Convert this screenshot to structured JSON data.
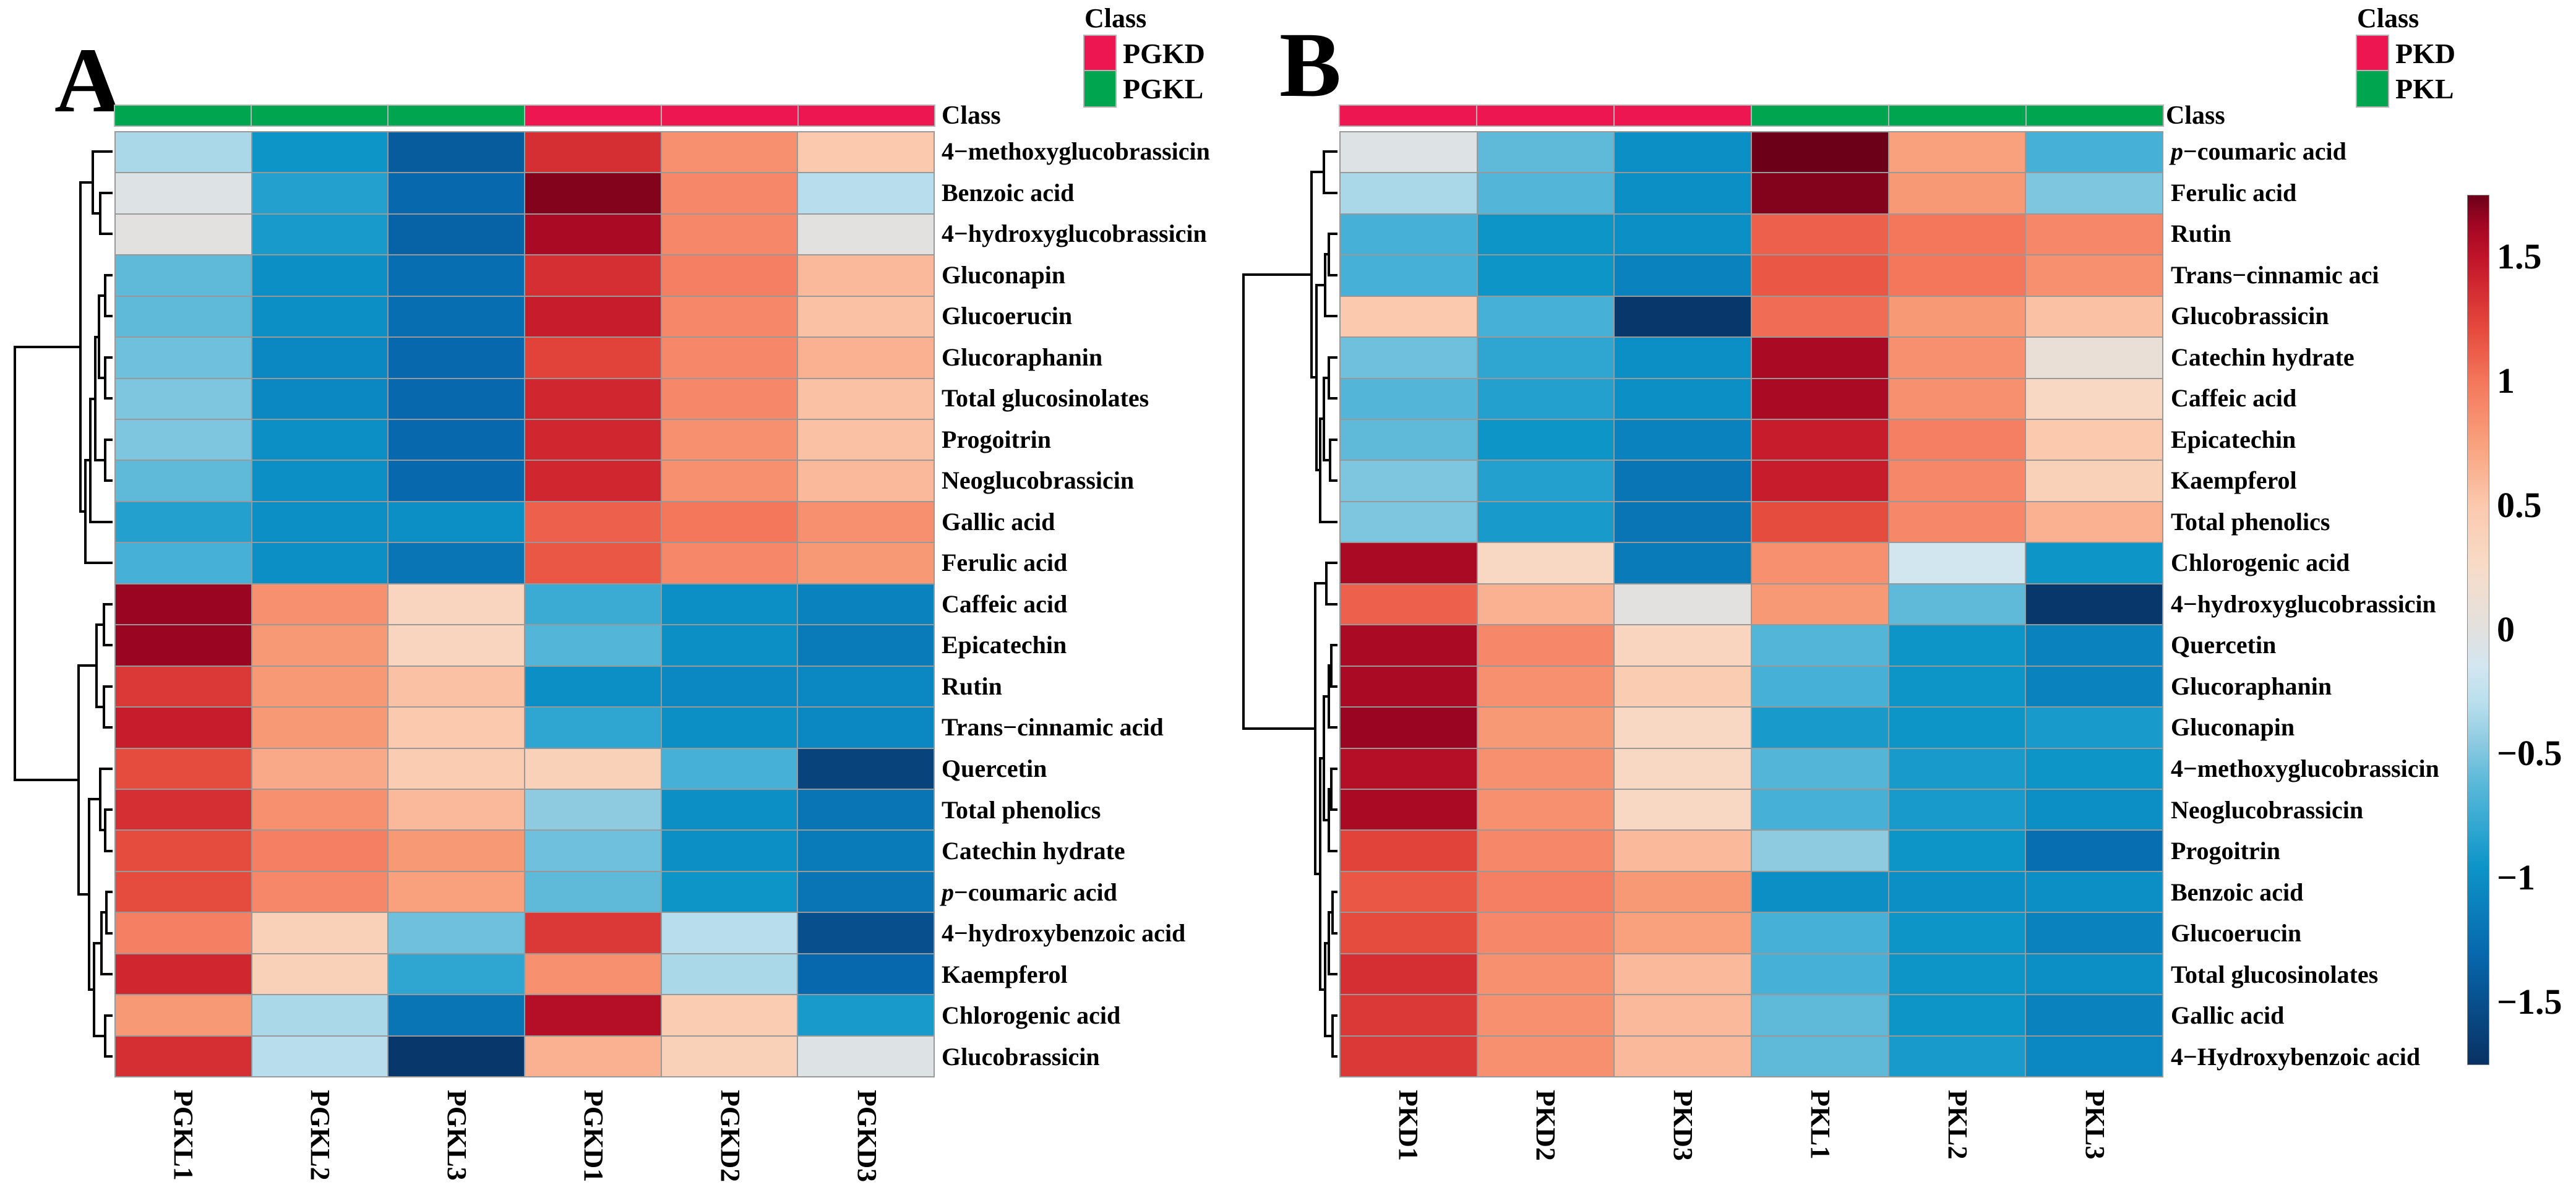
{
  "chart_data": [
    {
      "type": "heatmap",
      "panel": "A",
      "legend": {
        "title": "Class",
        "items": [
          {
            "label": "PGKD",
            "color": "#ED1650"
          },
          {
            "label": "PGKL",
            "color": "#00A64F"
          }
        ]
      },
      "class_bar_label": "Class",
      "columns": [
        "PGKL1",
        "PGKL2",
        "PGKL3",
        "PGKD1",
        "PGKD2",
        "PGKD3"
      ],
      "column_classes": [
        "PGKL",
        "PGKL",
        "PGKL",
        "PGKD",
        "PGKD",
        "PGKD"
      ],
      "rows": [
        "4−methoxyglucobrassicin",
        "Benzoic acid",
        "4−hydroxyglucobrassicin",
        "Gluconapin",
        "Glucoerucin",
        "Glucoraphanin",
        "Total glucosinolates",
        "Progoitrin",
        "Neoglucobrassicin",
        "Gallic acid",
        "Ferulic acid",
        "Caffeic acid",
        "Epicatechin",
        "Rutin",
        "Trans−cinnamic acid",
        "Quercetin",
        "Total phenolics",
        "Catechin hydrate",
        "p−coumaric acid",
        "4−hydroxybenzoic acid",
        "Kaempferol",
        "Chlorogenic acid",
        "Glucobrassicin"
      ],
      "values": [
        [
          -0.35,
          -0.95,
          -1.4,
          1.35,
          0.85,
          0.5
        ],
        [
          -0.05,
          -0.85,
          -1.3,
          1.7,
          0.9,
          -0.3
        ],
        [
          0.0,
          -0.9,
          -1.35,
          1.6,
          0.9,
          0.0
        ],
        [
          -0.6,
          -1.0,
          -1.25,
          1.35,
          0.95,
          0.6
        ],
        [
          -0.6,
          -1.0,
          -1.25,
          1.45,
          0.9,
          0.55
        ],
        [
          -0.55,
          -1.05,
          -1.3,
          1.25,
          0.9,
          0.65
        ],
        [
          -0.5,
          -1.05,
          -1.3,
          1.4,
          0.9,
          0.55
        ],
        [
          -0.5,
          -1.0,
          -1.3,
          1.4,
          0.85,
          0.55
        ],
        [
          -0.6,
          -1.0,
          -1.3,
          1.4,
          0.85,
          0.6
        ],
        [
          -0.85,
          -1.0,
          -1.0,
          1.1,
          1.0,
          0.85
        ],
        [
          -0.7,
          -1.0,
          -1.2,
          1.15,
          0.9,
          0.8
        ],
        [
          1.65,
          0.85,
          0.35,
          -0.75,
          -1.0,
          -1.1
        ],
        [
          1.65,
          0.8,
          0.35,
          -0.65,
          -1.0,
          -1.15
        ],
        [
          1.3,
          0.8,
          0.55,
          -1.0,
          -1.05,
          -1.05
        ],
        [
          1.45,
          0.8,
          0.5,
          -0.8,
          -1.0,
          -1.05
        ],
        [
          1.2,
          0.7,
          0.45,
          0.4,
          -0.7,
          -1.6
        ],
        [
          1.35,
          0.85,
          0.6,
          -0.45,
          -1.0,
          -1.2
        ],
        [
          1.2,
          0.95,
          0.8,
          -0.55,
          -1.0,
          -1.15
        ],
        [
          1.2,
          0.9,
          0.75,
          -0.6,
          -0.95,
          -1.2
        ],
        [
          0.95,
          0.4,
          -0.55,
          1.3,
          -0.3,
          -1.5
        ],
        [
          1.4,
          0.4,
          -0.8,
          0.85,
          -0.35,
          -1.3
        ],
        [
          0.8,
          -0.35,
          -1.2,
          1.55,
          0.45,
          -0.9
        ],
        [
          1.35,
          -0.3,
          -1.7,
          0.65,
          0.4,
          -0.05
        ]
      ],
      "value_domain": [
        -1.75,
        1.75
      ]
    },
    {
      "type": "heatmap",
      "panel": "B",
      "legend": {
        "title": "Class",
        "items": [
          {
            "label": "PKD",
            "color": "#ED1650"
          },
          {
            "label": "PKL",
            "color": "#00A64F"
          }
        ]
      },
      "class_bar_label": "Class",
      "columns": [
        "PKD1",
        "PKD2",
        "PKD3",
        "PKL1",
        "PKL2",
        "PKL3"
      ],
      "column_classes": [
        "PKD",
        "PKD",
        "PKD",
        "PKL",
        "PKL",
        "PKL"
      ],
      "rows": [
        "p−coumaric acid",
        "Ferulic acid",
        "Rutin",
        "Trans−cinnamic aci",
        "Glucobrassicin",
        "Catechin hydrate",
        "Caffeic acid",
        "Epicatechin",
        "Kaempferol",
        "Total phenolics",
        "Chlorogenic acid",
        "4−hydroxyglucobrassicin",
        "Quercetin",
        "Glucoraphanin",
        "Gluconapin",
        "4−methoxyglucobrassicin",
        "Neoglucobrassicin",
        "Progoitrin",
        "Benzoic acid",
        "Glucoerucin",
        "Total glucosinolates",
        "Gallic acid",
        "4−Hydroxybenzoic acid"
      ],
      "values": [
        [
          -0.05,
          -0.6,
          -1.0,
          1.75,
          0.75,
          -0.7
        ],
        [
          -0.35,
          -0.65,
          -1.0,
          1.7,
          0.8,
          -0.5
        ],
        [
          -0.7,
          -0.95,
          -1.0,
          1.1,
          1.0,
          0.9
        ],
        [
          -0.7,
          -0.95,
          -1.1,
          1.15,
          1.0,
          0.85
        ],
        [
          0.5,
          -0.7,
          -1.7,
          1.05,
          0.8,
          0.55
        ],
        [
          -0.55,
          -0.8,
          -1.0,
          1.6,
          0.85,
          0.1
        ],
        [
          -0.65,
          -0.85,
          -1.0,
          1.6,
          0.85,
          0.3
        ],
        [
          -0.6,
          -0.95,
          -1.1,
          1.45,
          0.95,
          0.5
        ],
        [
          -0.5,
          -0.85,
          -1.2,
          1.45,
          0.9,
          0.4
        ],
        [
          -0.5,
          -0.9,
          -1.2,
          1.2,
          0.9,
          0.65
        ],
        [
          1.6,
          0.3,
          -1.15,
          0.85,
          -0.15,
          -0.95
        ],
        [
          1.1,
          0.65,
          0.0,
          0.8,
          -0.6,
          -1.7
        ],
        [
          1.6,
          0.9,
          0.35,
          -0.65,
          -0.95,
          -1.1
        ],
        [
          1.6,
          0.85,
          0.45,
          -0.7,
          -0.95,
          -1.1
        ],
        [
          1.65,
          0.8,
          0.3,
          -0.9,
          -0.95,
          -0.9
        ],
        [
          1.55,
          0.85,
          0.3,
          -0.65,
          -0.9,
          -0.95
        ],
        [
          1.6,
          0.85,
          0.3,
          -0.7,
          -0.9,
          -1.0
        ],
        [
          1.25,
          0.9,
          0.6,
          -0.45,
          -0.95,
          -1.25
        ],
        [
          1.15,
          0.95,
          0.8,
          -1.0,
          -1.0,
          -1.0
        ],
        [
          1.2,
          0.9,
          0.75,
          -0.7,
          -0.95,
          -1.1
        ],
        [
          1.35,
          0.85,
          0.6,
          -0.7,
          -0.95,
          -1.0
        ],
        [
          1.3,
          0.85,
          0.6,
          -0.6,
          -0.95,
          -1.1
        ],
        [
          1.3,
          0.85,
          0.6,
          -0.6,
          -0.9,
          -1.05
        ]
      ],
      "value_domain": [
        -1.75,
        1.75
      ]
    }
  ],
  "colorbar": {
    "domain": [
      -1.75,
      1.75
    ],
    "ticks": [
      {
        "label": "1.5",
        "value": 1.5
      },
      {
        "label": "1",
        "value": 1.0
      },
      {
        "label": "0.5",
        "value": 0.5
      },
      {
        "label": "0",
        "value": 0.0
      },
      {
        "label": "−0.5",
        "value": -0.5
      },
      {
        "label": "−1",
        "value": -1.0
      },
      {
        "label": "−1.5",
        "value": -1.5
      }
    ],
    "stops": [
      [
        -1.75,
        "#083163"
      ],
      [
        -1.3,
        "#0768AE"
      ],
      [
        -0.95,
        "#0D95C8"
      ],
      [
        -0.8,
        "#2FA6D1"
      ],
      [
        -0.6,
        "#5FBADA"
      ],
      [
        -0.45,
        "#8ECBE1"
      ],
      [
        -0.3,
        "#B8DEED"
      ],
      [
        -0.15,
        "#D2E6F0"
      ],
      [
        0.0,
        "#E2E1DF"
      ],
      [
        0.25,
        "#F7DCC8"
      ],
      [
        0.5,
        "#FBC9AE"
      ],
      [
        0.75,
        "#F9A17D"
      ],
      [
        1.0,
        "#F4775B"
      ],
      [
        1.2,
        "#E64C3E"
      ],
      [
        1.35,
        "#D62F33"
      ],
      [
        1.5,
        "#C01329"
      ],
      [
        1.63,
        "#A30723"
      ],
      [
        1.75,
        "#6C0019"
      ]
    ]
  }
}
